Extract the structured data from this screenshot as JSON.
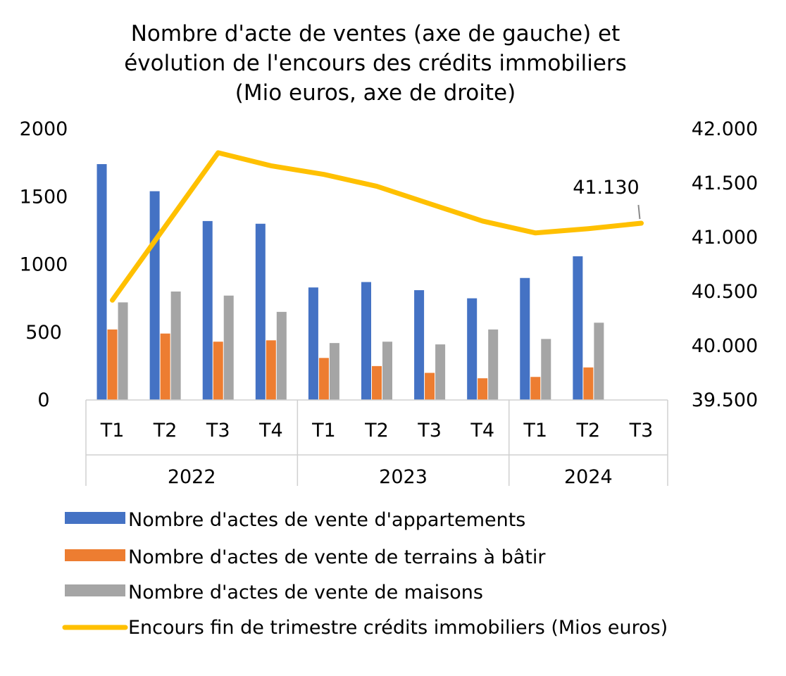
{
  "chart_data": {
    "type": "bar",
    "title_lines": [
      "Nombre d'acte de ventes (axe de gauche) et",
      "évolution de l'encours des crédits immobiliers",
      "(Mio euros, axe de droite)"
    ],
    "categories": [
      "T1",
      "T2",
      "T3",
      "T4",
      "T1",
      "T2",
      "T3",
      "T4",
      "T1",
      "T2",
      "T3"
    ],
    "groups": [
      {
        "label": "2022",
        "start": 0,
        "count": 4
      },
      {
        "label": "2023",
        "start": 4,
        "count": 4
      },
      {
        "label": "2024",
        "start": 8,
        "count": 3
      }
    ],
    "left_axis": {
      "ylim": [
        0,
        2000
      ],
      "ticks": [
        "0",
        "500",
        "1000",
        "1500",
        "2000"
      ]
    },
    "right_axis": {
      "ylim": [
        39500,
        42000
      ],
      "ticks": [
        "39.500",
        "40.000",
        "40.500",
        "41.000",
        "41.500",
        "42.000"
      ]
    },
    "series": [
      {
        "name": "Nombre d'actes de vente d'appartements",
        "color": "#4472C4",
        "axis": "left",
        "values": [
          1740,
          1540,
          1320,
          1300,
          830,
          870,
          810,
          750,
          900,
          1060,
          null
        ]
      },
      {
        "name": "Nombre d'actes de vente de terrains à bâtir",
        "color": "#ED7D31",
        "axis": "left",
        "values": [
          520,
          490,
          430,
          440,
          310,
          250,
          200,
          160,
          170,
          240,
          null
        ]
      },
      {
        "name": "Nombre d'actes de vente de maisons",
        "color": "#A5A5A5",
        "axis": "left",
        "values": [
          720,
          800,
          770,
          650,
          420,
          430,
          410,
          520,
          450,
          570,
          null
        ]
      },
      {
        "name": "Encours fin de trimestre crédits immobiliers (Mios euros)",
        "color": "#FFC000",
        "axis": "right",
        "type": "line",
        "values": [
          40420,
          41100,
          41780,
          41660,
          41580,
          41470,
          41310,
          41150,
          41040,
          41080,
          41130
        ]
      }
    ],
    "data_label": {
      "series": 3,
      "index": 10,
      "text": "41.130"
    },
    "legend_position": "bottom",
    "grid": false
  }
}
